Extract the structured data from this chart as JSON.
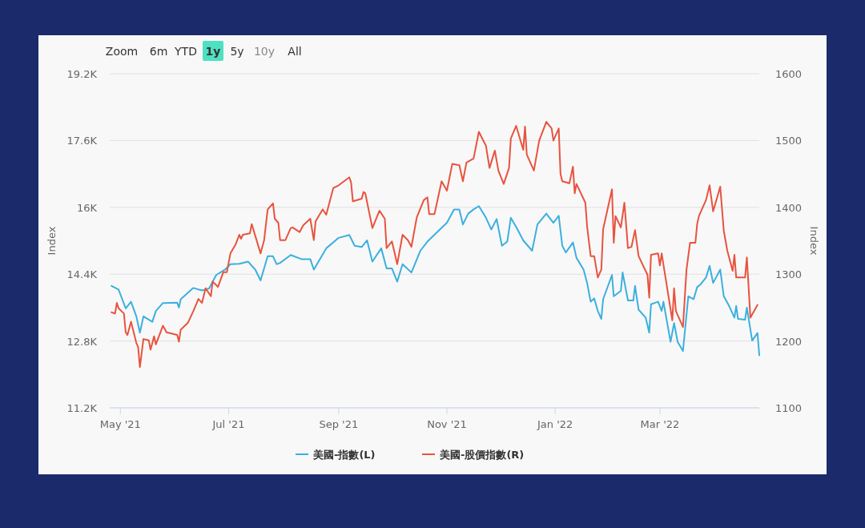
{
  "chart_data": {
    "type": "line",
    "ylabel": "Index",
    "y2label": "Index",
    "annotations": [
      "Zoom",
      "6m",
      "YTD",
      "1y",
      "5y",
      "10y",
      "All"
    ],
    "xlim": [
      "2021-04-25",
      "2022-04-26"
    ],
    "xticks": [
      {
        "value": "2021-05-01",
        "label": "May '21"
      },
      {
        "value": "2021-07-01",
        "label": "Jul '21"
      },
      {
        "value": "2021-09-01",
        "label": "Sep '21"
      },
      {
        "value": "2021-11-01",
        "label": "Nov '21"
      },
      {
        "value": "2022-01-01",
        "label": "Jan '22"
      },
      {
        "value": "2022-03-01",
        "label": "Mar '22"
      }
    ],
    "ylim": [
      11200,
      19200
    ],
    "yticks": [
      {
        "value": 11200,
        "label": "11.2K"
      },
      {
        "value": 12800,
        "label": "12.8K"
      },
      {
        "value": 14400,
        "label": "14.4K"
      },
      {
        "value": 16000,
        "label": "16K"
      },
      {
        "value": 17600,
        "label": "17.6K"
      },
      {
        "value": 19200,
        "label": "19.2K"
      }
    ],
    "y2lim": [
      1100,
      1600
    ],
    "y2ticks": [
      1100,
      1200,
      1300,
      1400,
      1500,
      1600
    ],
    "grid": "y",
    "legend": "bottom",
    "marker": "none",
    "line_style": "solid",
    "series": [
      {
        "name": "美國-指數(L)",
        "color": "#3bb0de",
        "axis": "y",
        "x": [
          "2021-04-26",
          "2021-04-30",
          "2021-05-04",
          "2021-05-07",
          "2021-05-10",
          "2021-05-12",
          "2021-05-14",
          "2021-05-19",
          "2021-05-21",
          "2021-05-25",
          "2021-06-02",
          "2021-06-03",
          "2021-06-04",
          "2021-06-11",
          "2021-06-16",
          "2021-06-20",
          "2021-06-24",
          "2021-06-29",
          "2021-07-02",
          "2021-07-07",
          "2021-07-12",
          "2021-07-16",
          "2021-07-19",
          "2021-07-23",
          "2021-07-26",
          "2021-07-28",
          "2021-07-30",
          "2021-08-05",
          "2021-08-11",
          "2021-08-16",
          "2021-08-18",
          "2021-08-25",
          "2021-09-01",
          "2021-09-07",
          "2021-09-10",
          "2021-09-14",
          "2021-09-17",
          "2021-09-20",
          "2021-09-25",
          "2021-09-28",
          "2021-10-01",
          "2021-10-04",
          "2021-10-07",
          "2021-10-12",
          "2021-10-17",
          "2021-10-21",
          "2021-10-28",
          "2021-11-01",
          "2021-11-05",
          "2021-11-08",
          "2021-11-10",
          "2021-11-13",
          "2021-11-16",
          "2021-11-19",
          "2021-11-23",
          "2021-11-26",
          "2021-11-29",
          "2021-12-02",
          "2021-12-05",
          "2021-12-07",
          "2021-12-10",
          "2021-12-14",
          "2021-12-19",
          "2021-12-22",
          "2021-12-27",
          "2021-12-31",
          "2022-01-03",
          "2022-01-05",
          "2022-01-07",
          "2022-01-11",
          "2022-01-13",
          "2022-01-17",
          "2022-01-19",
          "2022-01-21",
          "2022-01-23",
          "2022-01-25",
          "2022-01-27",
          "2022-01-28",
          "2022-02-02",
          "2022-02-03",
          "2022-02-07",
          "2022-02-08",
          "2022-02-11",
          "2022-02-14",
          "2022-02-15",
          "2022-02-17",
          "2022-02-21",
          "2022-02-23",
          "2022-02-24",
          "2022-02-28",
          "2022-03-02",
          "2022-03-03",
          "2022-03-07",
          "2022-03-09",
          "2022-03-11",
          "2022-03-14",
          "2022-03-17",
          "2022-03-20",
          "2022-03-22",
          "2022-03-24",
          "2022-03-27",
          "2022-03-29",
          "2022-03-31",
          "2022-04-04",
          "2022-04-06",
          "2022-04-09",
          "2022-04-12",
          "2022-04-13",
          "2022-04-14",
          "2022-04-18",
          "2022-04-19",
          "2022-04-22",
          "2022-04-25",
          "2022-04-26"
        ],
        "values": [
          14120,
          14030,
          13580,
          13740,
          13390,
          13000,
          13390,
          13260,
          13520,
          13710,
          13720,
          13600,
          13800,
          14070,
          14010,
          14060,
          14380,
          14510,
          14640,
          14650,
          14700,
          14510,
          14250,
          14830,
          14830,
          14640,
          14670,
          14860,
          14760,
          14760,
          14510,
          15020,
          15270,
          15340,
          15080,
          15050,
          15210,
          14700,
          15020,
          14540,
          14540,
          14220,
          14640,
          14440,
          14960,
          15180,
          15470,
          15630,
          15950,
          15950,
          15590,
          15850,
          15950,
          16030,
          15750,
          15470,
          15720,
          15080,
          15180,
          15750,
          15530,
          15210,
          14960,
          15590,
          15850,
          15630,
          15800,
          15080,
          14920,
          15160,
          14790,
          14510,
          14190,
          13740,
          13820,
          13520,
          13330,
          13800,
          14380,
          13870,
          14000,
          14440,
          13770,
          13770,
          14120,
          13550,
          13360,
          13000,
          13680,
          13740,
          13520,
          13740,
          12780,
          13230,
          12780,
          12560,
          13870,
          13800,
          14090,
          14160,
          14320,
          14600,
          14190,
          14510,
          13870,
          13640,
          13360,
          13640,
          13330,
          13310,
          13600,
          12810,
          12990,
          12460
        ]
      },
      {
        "name": "美國-股價指數(R)",
        "color": "#e8533f",
        "axis": "y2",
        "x": [
          "2021-04-26",
          "2021-04-28",
          "2021-04-29",
          "2021-04-30",
          "2021-05-03",
          "2021-05-04",
          "2021-05-05",
          "2021-05-07",
          "2021-05-10",
          "2021-05-11",
          "2021-05-12",
          "2021-05-14",
          "2021-05-17",
          "2021-05-18",
          "2021-05-20",
          "2021-05-21",
          "2021-05-25",
          "2021-05-27",
          "2021-06-02",
          "2021-06-03",
          "2021-06-04",
          "2021-06-08",
          "2021-06-11",
          "2021-06-14",
          "2021-06-16",
          "2021-06-18",
          "2021-06-21",
          "2021-06-22",
          "2021-06-25",
          "2021-06-28",
          "2021-06-30",
          "2021-07-02",
          "2021-07-05",
          "2021-07-07",
          "2021-07-08",
          "2021-07-09",
          "2021-07-13",
          "2021-07-14",
          "2021-07-19",
          "2021-07-21",
          "2021-07-23",
          "2021-07-26",
          "2021-07-27",
          "2021-07-29",
          "2021-07-30",
          "2021-08-02",
          "2021-08-05",
          "2021-08-06",
          "2021-08-10",
          "2021-08-12",
          "2021-08-16",
          "2021-08-18",
          "2021-08-19",
          "2021-08-23",
          "2021-08-25",
          "2021-08-29",
          "2021-09-01",
          "2021-09-07",
          "2021-09-08",
          "2021-09-09",
          "2021-09-14",
          "2021-09-15",
          "2021-09-16",
          "2021-09-20",
          "2021-09-24",
          "2021-09-27",
          "2021-09-28",
          "2021-10-01",
          "2021-10-04",
          "2021-10-07",
          "2021-10-10",
          "2021-10-12",
          "2021-10-15",
          "2021-10-19",
          "2021-10-21",
          "2021-10-22",
          "2021-10-25",
          "2021-10-29",
          "2021-11-01",
          "2021-11-04",
          "2021-11-08",
          "2021-11-10",
          "2021-11-12",
          "2021-11-16",
          "2021-11-19",
          "2021-11-23",
          "2021-11-25",
          "2021-11-28",
          "2021-11-30",
          "2021-12-03",
          "2021-12-06",
          "2021-12-07",
          "2021-12-10",
          "2021-12-14",
          "2021-12-15",
          "2021-12-16",
          "2021-12-20",
          "2021-12-23",
          "2021-12-27",
          "2021-12-30",
          "2021-12-31",
          "2022-01-03",
          "2022-01-04",
          "2022-01-05",
          "2022-01-09",
          "2022-01-11",
          "2022-01-12",
          "2022-01-13",
          "2022-01-18",
          "2022-01-19",
          "2022-01-21",
          "2022-01-23",
          "2022-01-25",
          "2022-01-27",
          "2022-01-28",
          "2022-01-31",
          "2022-02-02",
          "2022-02-03",
          "2022-02-04",
          "2022-02-07",
          "2022-02-09",
          "2022-02-11",
          "2022-02-13",
          "2022-02-15",
          "2022-02-17",
          "2022-02-22",
          "2022-02-23",
          "2022-02-24",
          "2022-02-28",
          "2022-03-01",
          "2022-03-02",
          "2022-03-08",
          "2022-03-09",
          "2022-03-10",
          "2022-03-14",
          "2022-03-16",
          "2022-03-18",
          "2022-03-21",
          "2022-03-22",
          "2022-03-23",
          "2022-03-27",
          "2022-03-29",
          "2022-03-31",
          "2022-04-04",
          "2022-04-06",
          "2022-04-08",
          "2022-04-11",
          "2022-04-12",
          "2022-04-13",
          "2022-04-18",
          "2022-04-19",
          "2022-04-21",
          "2022-04-25"
        ],
        "values": [
          1243,
          1241,
          1257,
          1249,
          1241,
          1213,
          1209,
          1229,
          1197,
          1191,
          1161,
          1203,
          1201,
          1187,
          1207,
          1195,
          1223,
          1213,
          1209,
          1199,
          1217,
          1227,
          1244,
          1263,
          1257,
          1279,
          1267,
          1289,
          1281,
          1303,
          1303,
          1331,
          1345,
          1359,
          1353,
          1359,
          1361,
          1375,
          1331,
          1351,
          1397,
          1406,
          1383,
          1377,
          1351,
          1351,
          1369,
          1370,
          1363,
          1373,
          1383,
          1351,
          1379,
          1397,
          1389,
          1429,
          1433,
          1445,
          1437,
          1409,
          1413,
          1423,
          1421,
          1369,
          1395,
          1383,
          1339,
          1349,
          1315,
          1359,
          1351,
          1341,
          1385,
          1411,
          1415,
          1390,
          1390,
          1439,
          1425,
          1465,
          1463,
          1439,
          1467,
          1473,
          1513,
          1492,
          1459,
          1485,
          1455,
          1435,
          1459,
          1503,
          1522,
          1486,
          1521,
          1479,
          1455,
          1500,
          1528,
          1518,
          1500,
          1518,
          1450,
          1439,
          1436,
          1461,
          1421,
          1435,
          1407,
          1371,
          1327,
          1327,
          1295,
          1307,
          1367,
          1403,
          1427,
          1347,
          1387,
          1370,
          1407,
          1339,
          1341,
          1366,
          1327,
          1299,
          1265,
          1329,
          1331,
          1313,
          1331,
          1231,
          1279,
          1245,
          1221,
          1307,
          1347,
          1347,
          1375,
          1387,
          1411,
          1433,
          1394,
          1431,
          1365,
          1335,
          1305,
          1329,
          1295,
          1295,
          1325,
          1235,
          1254
        ]
      }
    ]
  }
}
